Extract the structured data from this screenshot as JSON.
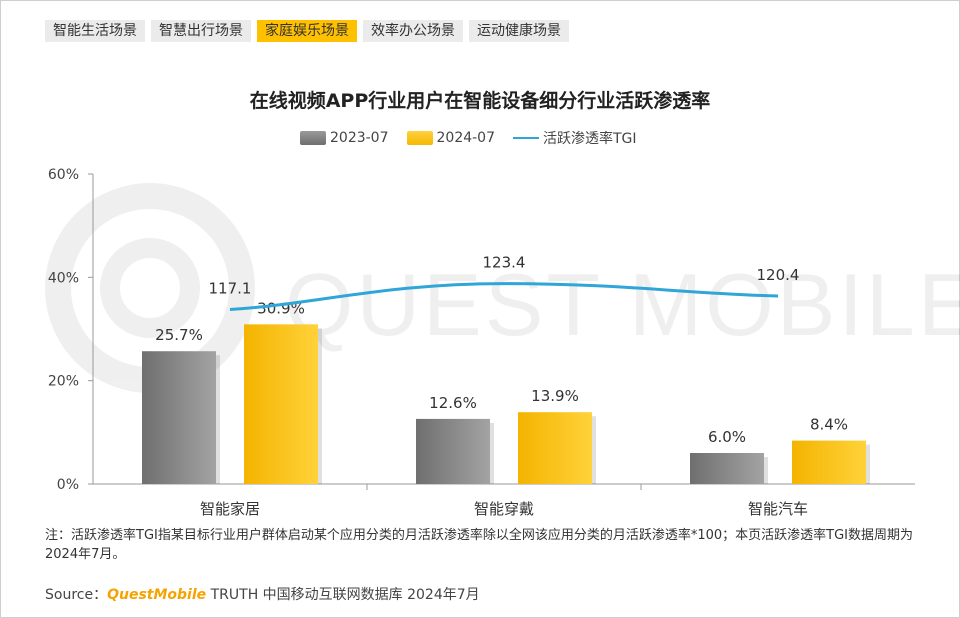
{
  "tabs": [
    {
      "label": "智能生活场景",
      "active": false
    },
    {
      "label": "智慧出行场景",
      "active": false
    },
    {
      "label": "家庭娱乐场景",
      "active": true
    },
    {
      "label": "效率办公场景",
      "active": false
    },
    {
      "label": "运动健康场景",
      "active": false
    }
  ],
  "watermark": "QUEST MOBILE",
  "colors": {
    "series_2023": "#808080",
    "series_2024": "#ffc000",
    "tgi_line": "#2fa5d8",
    "accent": "#ffc000"
  },
  "chart_data": {
    "type": "bar",
    "title": "在线视频APP行业用户在智能设备细分行业活跃渗透率",
    "categories": [
      "智能家居",
      "智能穿戴",
      "智能汽车"
    ],
    "series": [
      {
        "name": "2023-07",
        "values": [
          25.7,
          12.6,
          6.0
        ],
        "labels": [
          "25.7%",
          "12.6%",
          "6.0%"
        ]
      },
      {
        "name": "2024-07",
        "values": [
          30.9,
          13.9,
          8.4
        ],
        "labels": [
          "30.9%",
          "13.9%",
          "8.4%"
        ]
      }
    ],
    "line_series": {
      "name": "活跃渗透率TGI",
      "values": [
        117.1,
        123.4,
        120.4
      ],
      "labels": [
        "117.1",
        "123.4",
        "120.4"
      ]
    },
    "y_ticks": [
      "60%",
      "40%",
      "20%",
      "0%"
    ],
    "ylim": [
      0,
      60
    ],
    "xlabel": "",
    "ylabel": ""
  },
  "note": "注：活跃渗透率TGI指某目标行业用户群体启动某个应用分类的月活跃渗透率除以全网该应用分类的月活跃渗透率*100；本页活跃渗透率TGI数据周期为2024年7月。",
  "source": {
    "prefix": "Source：",
    "brand": "QuestMobile",
    "suffix": "TRUTH 中国移动互联网数据库 2024年7月"
  }
}
